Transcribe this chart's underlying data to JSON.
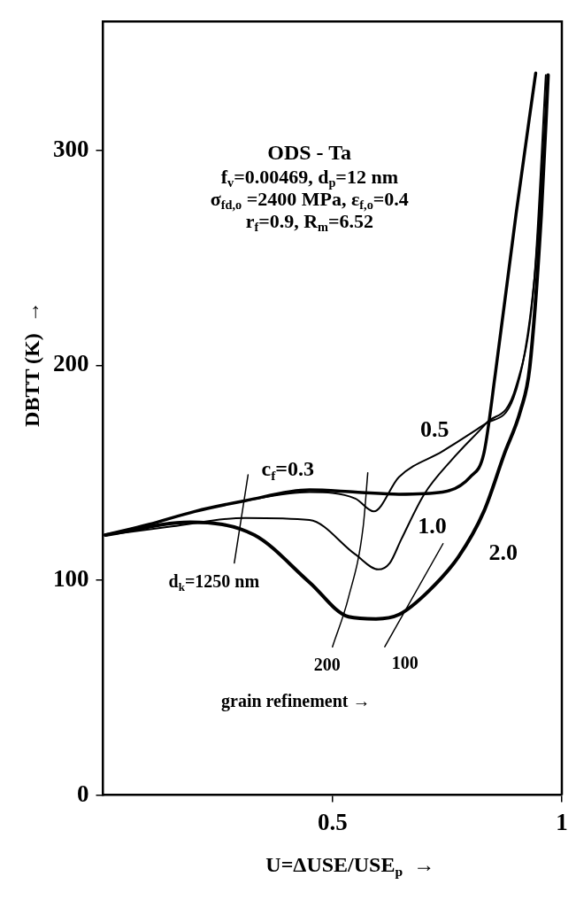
{
  "chart_data": {
    "type": "line",
    "title": "ODS - Ta",
    "subtitle": "f$_{v}$=0.00469, d$_{p}$=12 nm\nσ$_{fd,o}$ =2400 MPa, ε$_{f,o}$=0.4\nr$_{f}$=0.9, R$_{m}$=6.52",
    "xlabel": "U=ΔUSE/USE$_{p}$  →",
    "ylabel": "DBTT (K)  →",
    "xlim": [
      0,
      1
    ],
    "ylim": [
      0,
      360
    ],
    "xticks": [
      0.5,
      1
    ],
    "yticks": [
      0,
      100,
      200,
      300
    ],
    "grid": false,
    "legend": false,
    "marker": "none",
    "line_style": "solid",
    "series": [
      {
        "name": "c$_{f}$=0.3",
        "color": "#000000",
        "x": [
          0.005,
          0.1,
          0.2,
          0.31,
          0.45,
          0.55,
          0.645,
          0.74,
          0.8,
          0.83,
          0.855,
          0.9,
          0.943
        ],
        "values": [
          121,
          126,
          132,
          137,
          142,
          141,
          140,
          141,
          148,
          159,
          196,
          270,
          336
        ]
      },
      {
        "name": "0.5",
        "color": "#000000",
        "x": [
          0.005,
          0.1,
          0.2,
          0.31,
          0.45,
          0.55,
          0.59,
          0.645,
          0.74,
          0.835,
          0.895,
          0.94,
          0.97
        ],
        "values": [
          121,
          126,
          132,
          137,
          141,
          138,
          132,
          148,
          160,
          173,
          185,
          240,
          335
        ]
      },
      {
        "name": "1.0",
        "color": "#000000",
        "x": [
          0.005,
          0.15,
          0.31,
          0.45,
          0.55,
          0.6,
          0.625,
          0.65,
          0.7,
          0.76,
          0.835,
          0.9,
          0.94,
          0.965
        ],
        "values": [
          121,
          125,
          129,
          128,
          112,
          105,
          108,
          119,
          140,
          156,
          173,
          190,
          240,
          335
        ]
      },
      {
        "name": "2.0",
        "color": "#000000",
        "x": [
          0.005,
          0.19,
          0.33,
          0.45,
          0.535,
          0.595,
          0.645,
          0.71,
          0.775,
          0.83,
          0.875,
          0.91,
          0.93,
          0.955,
          0.97
        ],
        "values": [
          121,
          127,
          121,
          99,
          83,
          82,
          84,
          95,
          111,
          132,
          159,
          179,
          199,
          270,
          335
        ]
      },
      {
        "name": "d$_{k}$=1250 nm",
        "color": "#000000",
        "x": [
          0.286,
          0.316
        ],
        "values": [
          108,
          149
        ]
      },
      {
        "name": "200",
        "color": "#000000",
        "x": [
          0.5,
          0.535,
          0.567,
          0.577
        ],
        "values": [
          69,
          92,
          125,
          150
        ]
      },
      {
        "name": "100",
        "color": "#000000",
        "x": [
          0.614,
          0.741
        ],
        "values": [
          69,
          117
        ]
      }
    ],
    "annotations": [
      "grain refinement →"
    ]
  }
}
